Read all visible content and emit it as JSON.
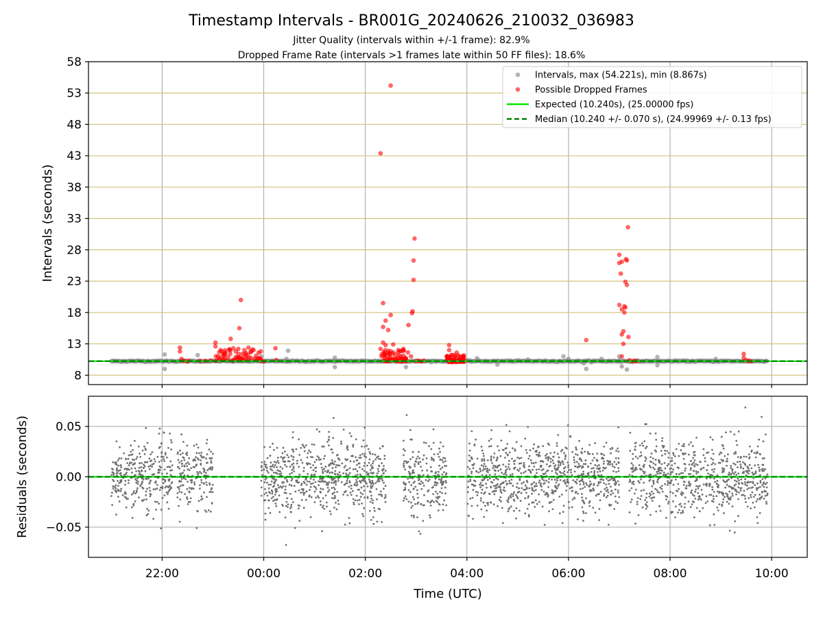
{
  "figure": {
    "title": "Timestamp Intervals - BR001G_20240626_210032_036983",
    "subtitle_1": "Jitter Quality (intervals within +/-1 frame): 82.9%",
    "subtitle_2": "Dropped Frame Rate (intervals >1 frames late within 50 FF files): 18.6%",
    "xlabel": "Time (UTC)"
  },
  "colors": {
    "intervals": "#808080",
    "dropped": "#ff0000",
    "expected": "#00e600",
    "median": "#008000",
    "grid": "#b0b0b0",
    "hgrid": "#d4c07c",
    "residual": "#707070"
  },
  "chart_data": [
    {
      "type": "scatter",
      "ylabel": "Intervals (seconds)",
      "ylim": [
        6.5,
        58
      ],
      "xlim_hours": [
        20.55,
        34.7
      ],
      "yticks": [
        8,
        13,
        18,
        23,
        28,
        33,
        38,
        43,
        48,
        53,
        58
      ],
      "xticks": [
        {
          "t": 22,
          "label": "22:00"
        },
        {
          "t": 24,
          "label": "00:00"
        },
        {
          "t": 26,
          "label": "02:00"
        },
        {
          "t": 28,
          "label": "04:00"
        },
        {
          "t": 30,
          "label": "06:00"
        },
        {
          "t": 32,
          "label": "08:00"
        },
        {
          "t": 34,
          "label": "10:00"
        }
      ],
      "grid": "on",
      "legend_placement": "top-right",
      "legend": [
        {
          "label": "Intervals, max (54.221s), min (8.867s)",
          "kind": "point-gray"
        },
        {
          "label": "Possible Dropped Frames",
          "kind": "point-red"
        },
        {
          "label": "Expected (10.240s), (25.00000 fps)",
          "kind": "line-green"
        },
        {
          "label": "Median (10.240 +/- 0.070 s), (24.99969 +/- 0.13 fps)",
          "kind": "line-dash"
        }
      ],
      "expected_interval": 10.24,
      "median_interval": 10.24,
      "time_range_hours": [
        21.0,
        33.92
      ],
      "baseline_interval": 10.24,
      "gray_outliers": [
        {
          "t": 22.05,
          "y": 11.3
        },
        {
          "t": 22.05,
          "y": 9.0
        },
        {
          "t": 22.7,
          "y": 11.2
        },
        {
          "t": 23.95,
          "y": 11.0
        },
        {
          "t": 24.48,
          "y": 11.9
        },
        {
          "t": 24.45,
          "y": 10.6
        },
        {
          "t": 25.4,
          "y": 9.3
        },
        {
          "t": 25.4,
          "y": 10.8
        },
        {
          "t": 26.8,
          "y": 9.3
        },
        {
          "t": 28.2,
          "y": 10.7
        },
        {
          "t": 28.6,
          "y": 9.7
        },
        {
          "t": 29.2,
          "y": 10.5
        },
        {
          "t": 29.9,
          "y": 11.0
        },
        {
          "t": 30.3,
          "y": 9.9
        },
        {
          "t": 30.35,
          "y": 9.0
        },
        {
          "t": 30.65,
          "y": 10.6
        },
        {
          "t": 31.0,
          "y": 11.0
        },
        {
          "t": 31.05,
          "y": 9.4
        },
        {
          "t": 31.15,
          "y": 8.9
        },
        {
          "t": 31.75,
          "y": 10.9
        },
        {
          "t": 31.75,
          "y": 9.6
        },
        {
          "t": 32.9,
          "y": 10.6
        },
        {
          "t": 31.0,
          "y": 10.4
        },
        {
          "t": 30.0,
          "y": 10.6
        }
      ],
      "dropped_frames": [
        {
          "t": 22.35,
          "y": 12.4
        },
        {
          "t": 22.35,
          "y": 11.8
        },
        {
          "t": 22.38,
          "y": 10.6
        },
        {
          "t": 22.42,
          "y": 10.3
        },
        {
          "t": 22.48,
          "y": 10.2
        },
        {
          "t": 22.52,
          "y": 10.3
        },
        {
          "t": 22.75,
          "y": 10.3
        },
        {
          "t": 22.85,
          "y": 10.3
        },
        {
          "t": 23.05,
          "y": 13.2
        },
        {
          "t": 23.05,
          "y": 12.6
        },
        {
          "t": 23.1,
          "y": 11.0
        },
        {
          "t": 23.15,
          "y": 12.0
        },
        {
          "t": 23.2,
          "y": 11.4
        },
        {
          "t": 23.25,
          "y": 11.6
        },
        {
          "t": 23.3,
          "y": 10.9
        },
        {
          "t": 23.35,
          "y": 13.8
        },
        {
          "t": 23.4,
          "y": 12.3
        },
        {
          "t": 23.45,
          "y": 11.8
        },
        {
          "t": 23.5,
          "y": 12.2
        },
        {
          "t": 23.52,
          "y": 15.5
        },
        {
          "t": 23.55,
          "y": 20.0
        },
        {
          "t": 23.58,
          "y": 11.4
        },
        {
          "t": 23.62,
          "y": 12.0
        },
        {
          "t": 23.65,
          "y": 11.0
        },
        {
          "t": 23.7,
          "y": 12.4
        },
        {
          "t": 23.75,
          "y": 11.7
        },
        {
          "t": 23.8,
          "y": 12.0
        },
        {
          "t": 23.85,
          "y": 11.1
        },
        {
          "t": 23.9,
          "y": 11.6
        },
        {
          "t": 23.95,
          "y": 10.4
        },
        {
          "t": 24.0,
          "y": 10.2
        },
        {
          "t": 23.22,
          "y": 10.7
        },
        {
          "t": 23.45,
          "y": 10.9
        },
        {
          "t": 24.23,
          "y": 12.3
        },
        {
          "t": 24.25,
          "y": 10.4
        },
        {
          "t": 26.3,
          "y": 43.4
        },
        {
          "t": 26.35,
          "y": 19.5
        },
        {
          "t": 26.35,
          "y": 15.7
        },
        {
          "t": 26.4,
          "y": 16.7
        },
        {
          "t": 26.45,
          "y": 15.2
        },
        {
          "t": 26.5,
          "y": 17.6
        },
        {
          "t": 26.5,
          "y": 54.2
        },
        {
          "t": 26.3,
          "y": 12.2
        },
        {
          "t": 26.35,
          "y": 13.2
        },
        {
          "t": 26.4,
          "y": 12.8
        },
        {
          "t": 26.45,
          "y": 11.5
        },
        {
          "t": 26.5,
          "y": 11.8
        },
        {
          "t": 26.55,
          "y": 12.9
        },
        {
          "t": 26.6,
          "y": 11.3
        },
        {
          "t": 26.65,
          "y": 12.0
        },
        {
          "t": 26.7,
          "y": 11.0
        },
        {
          "t": 26.75,
          "y": 12.2
        },
        {
          "t": 26.8,
          "y": 10.6
        },
        {
          "t": 26.85,
          "y": 16.0
        },
        {
          "t": 26.9,
          "y": 11.0
        },
        {
          "t": 26.92,
          "y": 17.9
        },
        {
          "t": 26.93,
          "y": 18.2
        },
        {
          "t": 26.95,
          "y": 23.2
        },
        {
          "t": 26.95,
          "y": 26.3
        },
        {
          "t": 26.97,
          "y": 29.8
        },
        {
          "t": 27.0,
          "y": 10.2
        },
        {
          "t": 27.05,
          "y": 10.3
        },
        {
          "t": 27.1,
          "y": 10.2
        },
        {
          "t": 27.15,
          "y": 10.3
        },
        {
          "t": 26.32,
          "y": 11.0
        },
        {
          "t": 26.38,
          "y": 10.8
        },
        {
          "t": 26.42,
          "y": 10.6
        },
        {
          "t": 26.48,
          "y": 10.9
        },
        {
          "t": 26.52,
          "y": 10.5
        },
        {
          "t": 26.58,
          "y": 10.7
        },
        {
          "t": 26.62,
          "y": 10.4
        },
        {
          "t": 26.68,
          "y": 10.6
        },
        {
          "t": 26.72,
          "y": 10.4
        },
        {
          "t": 26.78,
          "y": 10.5
        },
        {
          "t": 27.6,
          "y": 11.0
        },
        {
          "t": 27.65,
          "y": 12.8
        },
        {
          "t": 27.65,
          "y": 12.0
        },
        {
          "t": 27.7,
          "y": 11.2
        },
        {
          "t": 27.75,
          "y": 10.6
        },
        {
          "t": 27.8,
          "y": 11.6
        },
        {
          "t": 27.85,
          "y": 10.4
        },
        {
          "t": 27.9,
          "y": 10.9
        },
        {
          "t": 27.95,
          "y": 10.2
        },
        {
          "t": 27.62,
          "y": 10.5
        },
        {
          "t": 27.72,
          "y": 10.3
        },
        {
          "t": 27.82,
          "y": 10.4
        },
        {
          "t": 27.92,
          "y": 10.3
        },
        {
          "t": 30.35,
          "y": 13.6
        },
        {
          "t": 31.0,
          "y": 27.2
        },
        {
          "t": 31.0,
          "y": 25.9
        },
        {
          "t": 31.03,
          "y": 24.2
        },
        {
          "t": 31.05,
          "y": 26.1
        },
        {
          "t": 31.0,
          "y": 19.2
        },
        {
          "t": 31.05,
          "y": 18.5
        },
        {
          "t": 31.1,
          "y": 19.0
        },
        {
          "t": 31.08,
          "y": 15.0
        },
        {
          "t": 31.05,
          "y": 14.5
        },
        {
          "t": 31.1,
          "y": 18.0
        },
        {
          "t": 31.12,
          "y": 22.9
        },
        {
          "t": 31.13,
          "y": 26.5
        },
        {
          "t": 31.15,
          "y": 26.3
        },
        {
          "t": 31.15,
          "y": 22.4
        },
        {
          "t": 31.17,
          "y": 31.6
        },
        {
          "t": 31.08,
          "y": 13.0
        },
        {
          "t": 31.05,
          "y": 11.0
        },
        {
          "t": 31.18,
          "y": 14.1
        },
        {
          "t": 31.2,
          "y": 10.4
        },
        {
          "t": 31.25,
          "y": 10.2
        },
        {
          "t": 31.3,
          "y": 10.3
        },
        {
          "t": 31.35,
          "y": 10.2
        },
        {
          "t": 31.12,
          "y": 18.8
        },
        {
          "t": 33.45,
          "y": 11.4
        },
        {
          "t": 33.45,
          "y": 10.8
        },
        {
          "t": 33.5,
          "y": 10.4
        },
        {
          "t": 33.55,
          "y": 10.3
        },
        {
          "t": 33.6,
          "y": 10.2
        }
      ]
    },
    {
      "type": "scatter",
      "ylabel": "Residuals (seconds)",
      "ylim": [
        -0.08,
        0.08
      ],
      "yticks": [
        -0.05,
        0.0,
        0.05
      ],
      "ytick_labels": [
        "−0.05",
        "0.00",
        "0.05"
      ],
      "xlim_hours": [
        20.55,
        34.7
      ],
      "grid": "on",
      "zero_line": 0.0,
      "segments_hours": [
        [
          21.0,
          22.2
        ],
        [
          22.3,
          23.0
        ],
        [
          23.95,
          25.4
        ],
        [
          25.35,
          26.4
        ],
        [
          26.75,
          27.6
        ],
        [
          28.0,
          30.3
        ],
        [
          30.25,
          31.0
        ],
        [
          31.2,
          33.92
        ]
      ]
    }
  ]
}
